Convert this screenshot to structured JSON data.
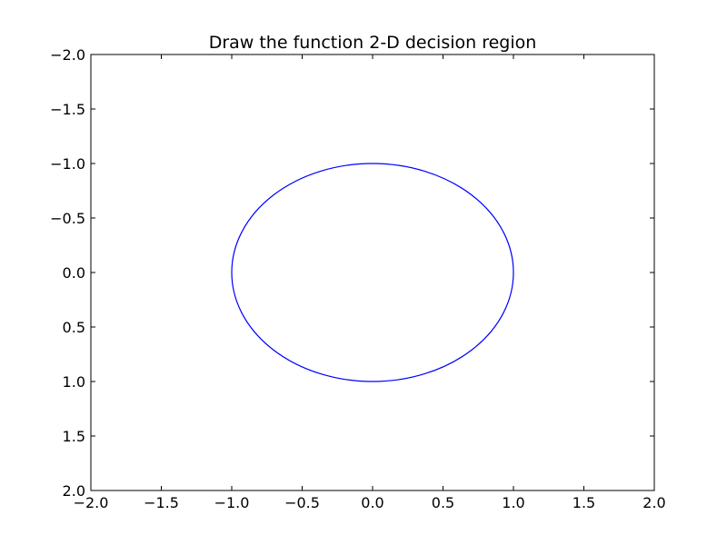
{
  "chart_data": {
    "type": "line",
    "title": "Draw the function 2-D decision region",
    "xlabel": "",
    "ylabel": "",
    "xlim": [
      -2.0,
      2.0
    ],
    "ylim": [
      2.0,
      -2.0
    ],
    "y_axis_inverted": true,
    "grid": false,
    "legend": "none",
    "x_ticks": [
      "−2.0",
      "−1.5",
      "−1.0",
      "−0.5",
      "0.0",
      "0.5",
      "1.0",
      "1.5",
      "2.0"
    ],
    "y_ticks": [
      "−2.0",
      "−1.5",
      "−1.0",
      "−0.5",
      "0.0",
      "0.5",
      "1.0",
      "1.5",
      "2.0"
    ],
    "x_tick_values": [
      -2.0,
      -1.5,
      -1.0,
      -0.5,
      0.0,
      0.5,
      1.0,
      1.5,
      2.0
    ],
    "y_tick_values": [
      -2.0,
      -1.5,
      -1.0,
      -0.5,
      0.0,
      0.5,
      1.0,
      1.5,
      2.0
    ],
    "series": [
      {
        "shape": "circle",
        "center": [
          0.0,
          0.0
        ],
        "radius": 1.0,
        "color": "#0000ff"
      }
    ]
  }
}
